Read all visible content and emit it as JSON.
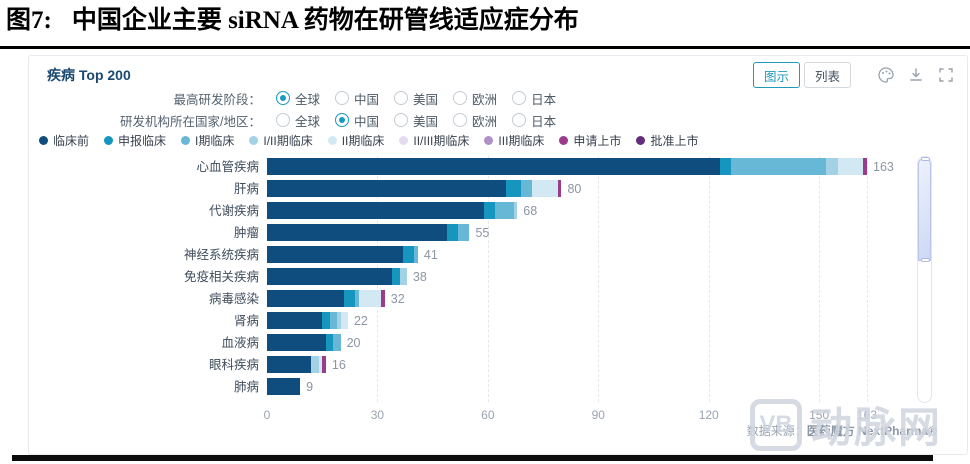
{
  "page": {
    "figure_label": "图7:",
    "figure_title": "中国企业主要 siRNA 药物在研管线适应症分布"
  },
  "panel": {
    "header": "疾病 Top 200",
    "view_buttons": {
      "chart": "图示",
      "list": "列表"
    },
    "icons": [
      "palette-icon",
      "download-icon",
      "fullscreen-icon"
    ],
    "filters": [
      {
        "label": "最高研发阶段：",
        "options": [
          "全球",
          "中国",
          "美国",
          "欧洲",
          "日本"
        ],
        "selected": 0
      },
      {
        "label": "研发机构所在国家/地区：",
        "options": [
          "全球",
          "中国",
          "美国",
          "欧洲",
          "日本"
        ],
        "selected": 1
      }
    ],
    "source_prefix": "数据来源：",
    "source_name": "医药魔方 NextPharma®"
  },
  "chart_data": {
    "type": "bar",
    "orientation": "horizontal",
    "title": "疾病 Top 200",
    "xlabel": "",
    "ylabel": "",
    "xticks": [
      0,
      30,
      60,
      90,
      120,
      150,
      163
    ],
    "xmax": 163,
    "grid": "dashed-vertical",
    "legend_position": "top",
    "stages": [
      {
        "name": "临床前",
        "color": "#0e4d7d"
      },
      {
        "name": "申报临床",
        "color": "#1695bf"
      },
      {
        "name": "I期临床",
        "color": "#67b7d6"
      },
      {
        "name": "I/II期临床",
        "color": "#a3d2e5"
      },
      {
        "name": "II期临床",
        "color": "#d2e9f4"
      },
      {
        "name": "II/III期临床",
        "color": "#e4dcee"
      },
      {
        "name": "III期临床",
        "color": "#b18fc9"
      },
      {
        "name": "申请上市",
        "color": "#9c3a8c"
      },
      {
        "name": "批准上市",
        "color": "#622d7d"
      }
    ],
    "categories": [
      "心血管疾病",
      "肝病",
      "代谢疾病",
      "肿瘤",
      "神经系统疾病",
      "免疫相关疾病",
      "病毒感染",
      "肾病",
      "血液病",
      "眼科疾病",
      "肺病"
    ],
    "values": [
      163,
      80,
      68,
      55,
      41,
      38,
      32,
      22,
      20,
      16,
      9
    ],
    "rows": [
      {
        "label": "心血管疾病",
        "total": 163,
        "segments": [
          [
            0,
            123
          ],
          [
            1,
            3
          ],
          [
            2,
            26
          ],
          [
            3,
            3
          ],
          [
            4,
            7
          ],
          [
            7,
            1
          ]
        ]
      },
      {
        "label": "肝病",
        "total": 80,
        "segments": [
          [
            0,
            65
          ],
          [
            1,
            4
          ],
          [
            2,
            3
          ],
          [
            4,
            7
          ],
          [
            7,
            1
          ]
        ]
      },
      {
        "label": "代谢疾病",
        "total": 68,
        "segments": [
          [
            0,
            59
          ],
          [
            1,
            3
          ],
          [
            2,
            5
          ],
          [
            3,
            1
          ]
        ]
      },
      {
        "label": "肿瘤",
        "total": 55,
        "segments": [
          [
            0,
            49
          ],
          [
            1,
            3
          ],
          [
            2,
            3
          ]
        ]
      },
      {
        "label": "神经系统疾病",
        "total": 41,
        "segments": [
          [
            0,
            37
          ],
          [
            1,
            3
          ],
          [
            2,
            1
          ]
        ]
      },
      {
        "label": "免疫相关疾病",
        "total": 38,
        "segments": [
          [
            0,
            34
          ],
          [
            1,
            2
          ],
          [
            3,
            2
          ]
        ]
      },
      {
        "label": "病毒感染",
        "total": 32,
        "segments": [
          [
            0,
            21
          ],
          [
            1,
            3
          ],
          [
            2,
            1
          ],
          [
            4,
            6
          ],
          [
            7,
            1
          ]
        ]
      },
      {
        "label": "肾病",
        "total": 22,
        "segments": [
          [
            0,
            15
          ],
          [
            1,
            2
          ],
          [
            2,
            2
          ],
          [
            3,
            1
          ],
          [
            4,
            2
          ]
        ]
      },
      {
        "label": "血液病",
        "total": 20,
        "segments": [
          [
            0,
            16
          ],
          [
            1,
            2
          ],
          [
            2,
            2
          ]
        ]
      },
      {
        "label": "眼科疾病",
        "total": 16,
        "segments": [
          [
            0,
            12
          ],
          [
            3,
            2
          ],
          [
            4,
            1
          ],
          [
            7,
            1
          ]
        ]
      },
      {
        "label": "肺病",
        "total": 9,
        "segments": [
          [
            0,
            9
          ]
        ]
      }
    ]
  },
  "watermark": {
    "logo": "VB",
    "text": "动脉网"
  },
  "colors": {
    "accent_teal": "#199ac0",
    "header_navy": "#1a4971",
    "bar_navy": "#0e4d7d"
  }
}
